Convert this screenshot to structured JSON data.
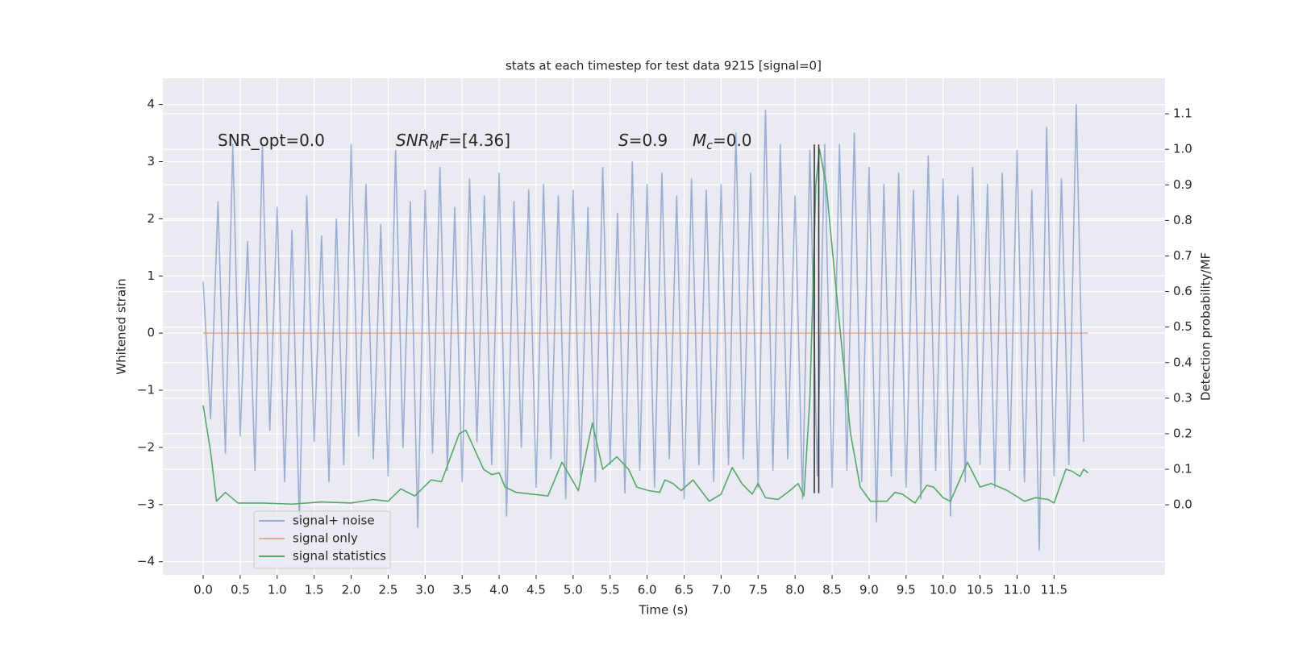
{
  "chart_data": {
    "type": "line",
    "title": "stats at each timestep for test data 9215 [signal=0]",
    "xlabel": "Time (s)",
    "ylabel": "Whitened strain",
    "y2label": "Detection probability/MF",
    "xlim": [
      -0.545,
      13.0
    ],
    "ylim": [
      -4.23,
      4.46
    ],
    "y2lim": [
      -0.197,
      1.2
    ],
    "xticks": [
      {
        "value": 0,
        "label": "0.0"
      },
      0.5,
      {
        "value": 1,
        "label": "1.0"
      },
      1.5,
      {
        "value": 2,
        "label": "2.0"
      },
      2.5,
      {
        "value": 3,
        "label": "3.0"
      },
      3.5,
      {
        "value": 4,
        "label": "4.0"
      },
      4.5,
      {
        "value": 5,
        "label": "5.0"
      },
      5.5,
      {
        "value": 6,
        "label": "6.0"
      },
      6.5,
      {
        "value": 7,
        "label": "7.0"
      },
      7.5,
      {
        "value": 8,
        "label": "8.0"
      },
      8.5,
      {
        "value": 9,
        "label": "9.0"
      },
      9.5,
      {
        "value": 10,
        "label": "10.0"
      },
      10.5,
      {
        "value": 11,
        "label": "11.0"
      },
      11.5
    ],
    "yticks": [
      {
        "value": -4,
        "label": "−4"
      },
      {
        "value": -3,
        "label": "−3"
      },
      {
        "value": -2,
        "label": "−2"
      },
      {
        "value": -1,
        "label": "−1"
      },
      0,
      1,
      2,
      3,
      4
    ],
    "y2ticks": [
      {
        "value": 0,
        "label": "0.0"
      },
      0.1,
      0.2,
      0.3,
      0.4,
      0.5,
      0.6,
      0.7,
      0.8,
      0.9,
      {
        "value": 1,
        "label": "1.0"
      },
      1.1
    ],
    "grid": true,
    "legend": "lower left",
    "series": [
      {
        "name": "signal+ noise",
        "color": "#4c72b0",
        "opacity": 0.5,
        "x": [
          0,
          0.1,
          0.2,
          0.3,
          0.4,
          0.5,
          0.6,
          0.7,
          0.8,
          0.9,
          1,
          1.1,
          1.2,
          1.3,
          1.4,
          1.5,
          1.6,
          1.7,
          1.8,
          1.9,
          2,
          2.1,
          2.2,
          2.3,
          2.4,
          2.5,
          2.6,
          2.7,
          2.8,
          2.9,
          3,
          3.1,
          3.2,
          3.3,
          3.4,
          3.5,
          3.6,
          3.7,
          3.8,
          3.9,
          4,
          4.1,
          4.2,
          4.3,
          4.4,
          4.5,
          4.6,
          4.7,
          4.8,
          4.9,
          5,
          5.1,
          5.2,
          5.3,
          5.4,
          5.5,
          5.6,
          5.7,
          5.8,
          5.9,
          6,
          6.1,
          6.2,
          6.3,
          6.4,
          6.5,
          6.6,
          6.7,
          6.8,
          6.9,
          7,
          7.1,
          7.2,
          7.3,
          7.4,
          7.5,
          7.6,
          7.7,
          7.8,
          7.9,
          8,
          8.1,
          8.2,
          8.3,
          8.4,
          8.5,
          8.6,
          8.7,
          8.8,
          8.9,
          9,
          9.1,
          9.2,
          9.3,
          9.4,
          9.5,
          9.6,
          9.7,
          9.8,
          9.9,
          10,
          10.1,
          10.2,
          10.3,
          10.4,
          10.5,
          10.6,
          10.7,
          10.8,
          10.9,
          11,
          11.1,
          11.2,
          11.3,
          11.4,
          11.5,
          11.6,
          11.7,
          11.8,
          11.9
        ],
        "values": [
          0.9,
          -1.5,
          2.3,
          -2.1,
          3.3,
          -1.8,
          1.6,
          -2.4,
          3.3,
          -1.7,
          2.2,
          -2.6,
          1.8,
          -3.3,
          2.4,
          -1.9,
          1.7,
          -2.6,
          2.0,
          -2.3,
          3.3,
          -1.8,
          2.6,
          -2.2,
          1.9,
          -2.5,
          3.2,
          -2.0,
          2.3,
          -3.4,
          2.5,
          -2.1,
          2.9,
          -2.4,
          2.2,
          -2.6,
          2.7,
          -1.9,
          2.4,
          -2.3,
          2.8,
          -3.2,
          2.3,
          -2.0,
          2.5,
          -2.7,
          2.6,
          -2.2,
          2.4,
          -2.9,
          2.5,
          -2.5,
          2.2,
          -2.6,
          2.9,
          -2.3,
          2.1,
          -2.8,
          3.0,
          -2.4,
          2.6,
          -2.7,
          2.8,
          -2.2,
          2.4,
          -2.9,
          2.7,
          -2.3,
          2.5,
          -2.6,
          2.6,
          -2.3,
          3.5,
          -2.2,
          2.8,
          -2.7,
          3.9,
          -2.4,
          3.3,
          -2.2,
          2.4,
          -2.9,
          3.2,
          -2.5,
          3.3,
          -2.7,
          3.3,
          -2.4,
          3.5,
          -2.6,
          2.9,
          -3.3,
          2.6,
          -2.5,
          2.8,
          -2.7,
          2.5,
          -2.9,
          3.1,
          -2.4,
          2.7,
          -3.2,
          2.4,
          -2.6,
          2.9,
          -2.3,
          2.6,
          -2.7,
          2.8,
          -2.4,
          3.2,
          -2.6,
          2.5,
          -3.8,
          3.6,
          -2.5,
          2.7,
          -2.3,
          4.0,
          -1.9
        ]
      },
      {
        "name": "signal only",
        "color": "#dd8452",
        "opacity": 0.6,
        "x": [
          0,
          11.96
        ],
        "values": [
          0,
          0
        ]
      },
      {
        "name": "signal statistics",
        "color": "#55a868",
        "opacity": 1,
        "axis": "y2",
        "x": [
          0,
          0.1,
          0.18,
          0.3,
          0.47,
          0.8,
          1.2,
          1.6,
          2.0,
          2.3,
          2.5,
          2.67,
          2.86,
          3.08,
          3.22,
          3.46,
          3.55,
          3.79,
          3.9,
          4.0,
          4.08,
          4.23,
          4.66,
          4.85,
          5.07,
          5.26,
          5.4,
          5.59,
          5.75,
          5.86,
          6.02,
          6.17,
          6.24,
          6.35,
          6.46,
          6.62,
          6.73,
          6.84,
          7.0,
          7.15,
          7.28,
          7.42,
          7.5,
          7.6,
          7.77,
          7.93,
          8.04,
          8.12,
          8.2,
          8.28,
          8.33,
          8.42,
          8.58,
          8.75,
          8.88,
          9.02,
          9.24,
          9.35,
          9.45,
          9.62,
          9.78,
          9.87,
          10.0,
          10.1,
          10.33,
          10.5,
          10.65,
          10.87,
          11.1,
          11.25,
          11.42,
          11.5,
          11.66,
          11.74,
          11.85,
          11.9,
          11.96
        ],
        "values": [
          0.28,
          0.15,
          0.01,
          0.035,
          0.005,
          0.005,
          0.002,
          0.008,
          0.005,
          0.015,
          0.01,
          0.045,
          0.025,
          0.07,
          0.065,
          0.2,
          0.21,
          0.1,
          0.085,
          0.09,
          0.05,
          0.035,
          0.025,
          0.12,
          0.04,
          0.23,
          0.1,
          0.135,
          0.1,
          0.05,
          0.04,
          0.035,
          0.07,
          0.06,
          0.04,
          0.07,
          0.04,
          0.01,
          0.03,
          0.105,
          0.06,
          0.03,
          0.06,
          0.02,
          0.015,
          0.04,
          0.06,
          0.025,
          0.3,
          0.9,
          1.0,
          0.9,
          0.55,
          0.2,
          0.05,
          0.01,
          0.01,
          0.035,
          0.03,
          0.005,
          0.055,
          0.05,
          0.02,
          0.01,
          0.12,
          0.05,
          0.06,
          0.04,
          0.01,
          0.02,
          0.015,
          0.005,
          0.1,
          0.095,
          0.08,
          0.1,
          0.09
        ]
      }
    ],
    "vlines": {
      "x": [
        8.26,
        8.32
      ],
      "ymin": -2.8,
      "ymax": 3.3,
      "color": "#333333"
    },
    "annotations": [
      [
        {
          "t": "SNR_opt=0.0",
          "style": "normal"
        }
      ],
      [
        {
          "t": "SNR",
          "style": "italic"
        },
        {
          "t": "M",
          "style": "sub"
        },
        {
          "t": "F",
          "style": "italic"
        },
        {
          "t": "=[4.36]",
          "style": "normal"
        }
      ],
      [
        {
          "t": "S",
          "style": "italic"
        },
        {
          "t": "=0.9",
          "style": "normal"
        }
      ],
      [
        {
          "t": "M",
          "style": "italic"
        },
        {
          "t": "c",
          "style": "sub"
        },
        {
          "t": "=0.0",
          "style": "normal"
        }
      ]
    ]
  }
}
